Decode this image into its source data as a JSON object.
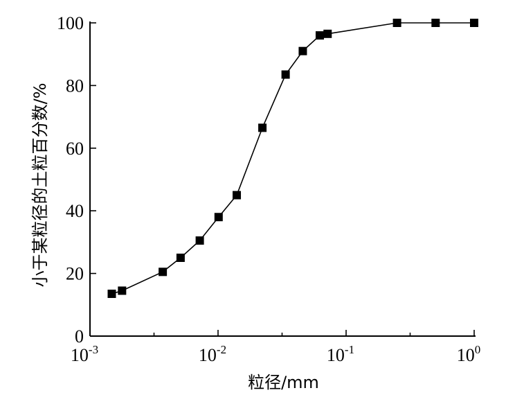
{
  "chart_data": {
    "type": "line",
    "title": "",
    "xlabel": "粒径/mm",
    "ylabel": "小于某粒径的土粒百分数/%",
    "x_scale": "log",
    "xlim": [
      0.001,
      1
    ],
    "ylim": [
      0,
      100
    ],
    "x_ticks": [
      {
        "base": "10",
        "exp": "-3",
        "value": 0.001
      },
      {
        "base": "10",
        "exp": "-2",
        "value": 0.01
      },
      {
        "base": "10",
        "exp": "-1",
        "value": 0.1
      },
      {
        "base": "10",
        "exp": "0",
        "value": 1
      }
    ],
    "y_ticks": [
      {
        "label": "0",
        "value": 0
      },
      {
        "label": "20",
        "value": 20
      },
      {
        "label": "40",
        "value": 40
      },
      {
        "label": "60",
        "value": 60
      },
      {
        "label": "80",
        "value": 80
      },
      {
        "label": "100",
        "value": 100
      }
    ],
    "grid": false,
    "series": [
      {
        "marker": "square",
        "color": "#000000",
        "x": [
          0.00148,
          0.00178,
          0.0037,
          0.0051,
          0.0072,
          0.0101,
          0.014,
          0.0222,
          0.0337,
          0.0459,
          0.0623,
          0.0717,
          0.25,
          0.5,
          1.0
        ],
        "y": [
          13.5,
          14.5,
          20.5,
          25,
          30.5,
          38,
          45,
          66.5,
          83.5,
          91,
          96,
          96.5,
          100,
          100,
          100
        ]
      }
    ]
  }
}
